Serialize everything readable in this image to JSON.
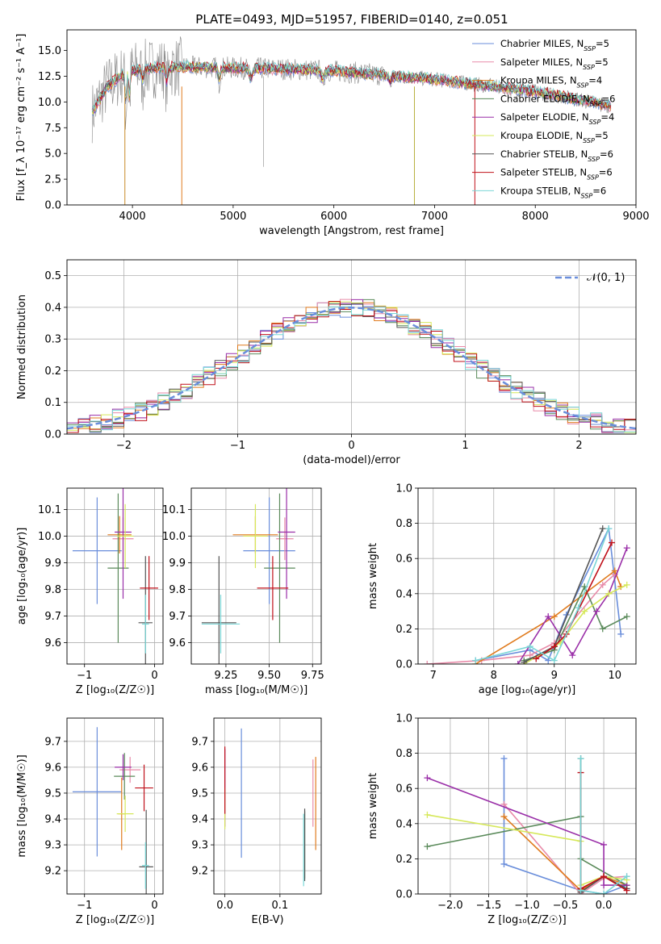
{
  "figure": {
    "title": "PLATE=0493, MJD=51957, FIBERID=0140, z=0.051"
  },
  "colors": {
    "Chabrier MILES": "#6a8edb",
    "Salpeter MILES": "#e88aa8",
    "Kroupa MILES": "#e07b1e",
    "Chabrier ELODIE": "#5a8a5a",
    "Salpeter ELODIE": "#9a2fa8",
    "Kroupa ELODIE": "#d6e85a",
    "Chabrier STELIB": "#555555",
    "Salpeter STELIB": "#c0101a",
    "Kroupa STELIB": "#79d6d6",
    "data": "#888888"
  },
  "chart_data": [
    {
      "id": "spectrum",
      "type": "line",
      "title": "PLATE=0493, MJD=51957, FIBERID=0140, z=0.051",
      "xlabel": "wavelength [Angstrom, rest frame]",
      "ylabel": "Flux [f_λ 10⁻¹⁷ erg cm⁻² s⁻¹ A⁻¹]",
      "xlim": [
        3350,
        9000
      ],
      "ylim": [
        0,
        17
      ],
      "xticks": [
        "4000",
        "5000",
        "6000",
        "7000",
        "8000",
        "9000"
      ],
      "yticks": [
        "0.0",
        "2.5",
        "5.0",
        "7.5",
        "10.0",
        "12.5",
        "15.0"
      ],
      "legend_position": "top-right",
      "legend": [
        {
          "name": "Chabrier MILES",
          "nssp": "5"
        },
        {
          "name": "Salpeter MILES",
          "nssp": "5"
        },
        {
          "name": "Kroupa MILES",
          "nssp": "4"
        },
        {
          "name": "Chabrier ELODIE",
          "nssp": "6"
        },
        {
          "name": "Salpeter ELODIE",
          "nssp": "4"
        },
        {
          "name": "Kroupa ELODIE",
          "nssp": "5"
        },
        {
          "name": "Chabrier STELIB",
          "nssp": "6"
        },
        {
          "name": "Salpeter STELIB",
          "nssp": "6"
        },
        {
          "name": "Kroupa STELIB",
          "nssp": "6"
        }
      ],
      "continuum": {
        "x": [
          3600,
          3750,
          3950,
          4200,
          4500,
          5000,
          5500,
          6000,
          6500,
          7000,
          7500,
          8000,
          8500,
          8750
        ],
        "y": [
          9.0,
          11.5,
          13.0,
          13.3,
          13.4,
          13.3,
          13.2,
          13.0,
          12.6,
          12.2,
          11.6,
          11.0,
          10.1,
          9.6
        ]
      }
    },
    {
      "id": "residuals",
      "type": "line",
      "xlabel": "(data-model)/error",
      "ylabel": "Normed distribution",
      "xlim": [
        -2.5,
        2.5
      ],
      "ylim": [
        0,
        0.55
      ],
      "xticks": [
        "−2",
        "−1",
        "0",
        "1",
        "2"
      ],
      "yticks": [
        "0.0",
        "0.1",
        "0.2",
        "0.3",
        "0.4",
        "0.5"
      ],
      "grid": true,
      "legend_position": "top-right",
      "legend_label": "𝒩(0, 1)"
    },
    {
      "id": "age_vs_Z",
      "type": "scatter",
      "xlabel": "Z [log₁₀(Z/Z☉)]",
      "ylabel": "age  [log₁₀(age/yr)]",
      "xlim": [
        -1.25,
        0.12
      ],
      "ylim": [
        9.52,
        10.18
      ],
      "xticks": [
        "−1",
        "0"
      ],
      "yticks": [
        "9.6",
        "9.7",
        "9.8",
        "9.9",
        "10.0",
        "10.1"
      ],
      "grid": true,
      "points": [
        {
          "model": "Chabrier MILES",
          "x": -0.82,
          "xerr": 0.35,
          "y": 9.945,
          "yerr": 0.2
        },
        {
          "model": "Salpeter MILES",
          "x": -0.45,
          "xerr": 0.15,
          "y": 9.99,
          "yerr": 0.08
        },
        {
          "model": "Kroupa MILES",
          "x": -0.5,
          "xerr": 0.17,
          "y": 10.005,
          "yerr": 0.07
        },
        {
          "model": "Chabrier ELODIE",
          "x": -0.52,
          "xerr": 0.15,
          "y": 9.88,
          "yerr": 0.28
        },
        {
          "model": "Salpeter ELODIE",
          "x": -0.45,
          "xerr": 0.12,
          "y": 10.015,
          "yerr": 0.25
        },
        {
          "model": "Kroupa ELODIE",
          "x": -0.42,
          "xerr": 0.12,
          "y": 10.0,
          "yerr": 0.12
        },
        {
          "model": "Chabrier STELIB",
          "x": -0.13,
          "xerr": 0.1,
          "y": 9.675,
          "yerr": 0.25
        },
        {
          "model": "Salpeter STELIB",
          "x": -0.08,
          "xerr": 0.13,
          "y": 9.805,
          "yerr": 0.12
        },
        {
          "model": "Kroupa STELIB",
          "x": -0.13,
          "xerr": 0.05,
          "y": 9.67,
          "yerr": 0.11
        }
      ]
    },
    {
      "id": "age_vs_mass",
      "type": "scatter",
      "xlabel": "mass [log₁₀(M/M☉)]",
      "ylabel": "",
      "xlim": [
        9.05,
        9.8
      ],
      "ylim": [
        9.52,
        10.18
      ],
      "xticks": [
        "9.25",
        "9.50",
        "9.75"
      ],
      "yticks": [
        "9.6",
        "9.7",
        "9.8",
        "9.9",
        "10.0",
        "10.1"
      ],
      "grid": true,
      "points": [
        {
          "model": "Chabrier MILES",
          "x": 9.5,
          "xerr": 0.15,
          "y": 9.945,
          "yerr": 0.2
        },
        {
          "model": "Salpeter MILES",
          "x": 9.59,
          "xerr": 0.05,
          "y": 9.99,
          "yerr": 0.08
        },
        {
          "model": "Kroupa MILES",
          "x": 9.42,
          "xerr": 0.13,
          "y": 10.005,
          "yerr": 0.07
        },
        {
          "model": "Chabrier ELODIE",
          "x": 9.56,
          "xerr": 0.09,
          "y": 9.88,
          "yerr": 0.28
        },
        {
          "model": "Salpeter ELODIE",
          "x": 9.6,
          "xerr": 0.05,
          "y": 10.015,
          "yerr": 0.25
        },
        {
          "model": "Kroupa ELODIE",
          "x": 9.42,
          "xerr": 0.07,
          "y": 10.0,
          "yerr": 0.12
        },
        {
          "model": "Chabrier STELIB",
          "x": 9.21,
          "xerr": 0.1,
          "y": 9.675,
          "yerr": 0.25
        },
        {
          "model": "Salpeter STELIB",
          "x": 9.52,
          "xerr": 0.09,
          "y": 9.805,
          "yerr": 0.12
        },
        {
          "model": "Kroupa STELIB",
          "x": 9.22,
          "xerr": 0.11,
          "y": 9.67,
          "yerr": 0.11
        }
      ]
    },
    {
      "id": "massweight_vs_age",
      "type": "line",
      "xlabel": "age  [log₁₀(age/yr)]",
      "ylabel": "mass weight",
      "xlim": [
        6.75,
        10.35
      ],
      "ylim": [
        0,
        1.0
      ],
      "xticks": [
        "7",
        "8",
        "9",
        "10"
      ],
      "yticks": [
        "0.0",
        "0.2",
        "0.4",
        "0.6",
        "0.8",
        "1.0"
      ],
      "grid": true,
      "series": [
        {
          "model": "Chabrier MILES",
          "x": [
            7.7,
            8.6,
            8.9,
            9.2,
            9.9,
            10.1
          ],
          "y": [
            0.02,
            0.08,
            0.02,
            0.28,
            0.77,
            0.17
          ]
        },
        {
          "model": "Salpeter MILES",
          "x": [
            6.9,
            7.8,
            8.6,
            9.0,
            9.8,
            10.0
          ],
          "y": [
            0.0,
            0.02,
            0.05,
            0.12,
            0.45,
            0.51
          ]
        },
        {
          "model": "Kroupa MILES",
          "x": [
            7.7,
            9.0,
            10.0,
            10.1
          ],
          "y": [
            0.0,
            0.27,
            0.53,
            0.44
          ]
        },
        {
          "model": "Chabrier ELODIE",
          "x": [
            8.5,
            9.0,
            9.5,
            9.8,
            10.2
          ],
          "y": [
            0.02,
            0.08,
            0.44,
            0.2,
            0.27
          ]
        },
        {
          "model": "Salpeter ELODIE",
          "x": [
            8.4,
            8.9,
            9.3,
            9.7,
            9.9,
            10.2
          ],
          "y": [
            0.0,
            0.27,
            0.05,
            0.3,
            0.4,
            0.66
          ]
        },
        {
          "model": "Kroupa ELODIE",
          "x": [
            8.5,
            9.1,
            9.5,
            9.9,
            10.2
          ],
          "y": [
            0.0,
            0.12,
            0.3,
            0.4,
            0.45
          ]
        },
        {
          "model": "Chabrier STELIB",
          "x": [
            8.5,
            9.0,
            9.8
          ],
          "y": [
            0.01,
            0.1,
            0.77
          ]
        },
        {
          "model": "Salpeter STELIB",
          "x": [
            8.7,
            9.0,
            9.2,
            9.95
          ],
          "y": [
            0.03,
            0.1,
            0.17,
            0.69
          ]
        },
        {
          "model": "Kroupa STELIB",
          "x": [
            7.7,
            8.6,
            9.0,
            9.4,
            9.9
          ],
          "y": [
            0.02,
            0.1,
            0.02,
            0.32,
            0.77
          ]
        }
      ]
    },
    {
      "id": "mass_vs_Z",
      "type": "scatter",
      "xlabel": "Z [log₁₀(Z/Z☉)]",
      "ylabel": "mass [log₁₀(M/M☉)]",
      "xlim": [
        -1.25,
        0.12
      ],
      "ylim": [
        9.11,
        9.79
      ],
      "xticks": [
        "−1",
        "0"
      ],
      "yticks": [
        "9.2",
        "9.3",
        "9.4",
        "9.5",
        "9.6",
        "9.7"
      ],
      "grid": true,
      "points": [
        {
          "model": "Chabrier MILES",
          "x": -0.82,
          "xerr": 0.35,
          "y": 9.505,
          "yerr": 0.25
        },
        {
          "model": "Salpeter MILES",
          "x": -0.35,
          "xerr": 0.15,
          "y": 9.59,
          "yerr": 0.05
        },
        {
          "model": "Kroupa MILES",
          "x": -0.47,
          "xerr": 0.05,
          "y": 9.42,
          "yerr": 0.14
        },
        {
          "model": "Chabrier ELODIE",
          "x": -0.43,
          "xerr": 0.15,
          "y": 9.565,
          "yerr": 0.09
        },
        {
          "model": "Salpeter ELODIE",
          "x": -0.45,
          "xerr": 0.12,
          "y": 9.6,
          "yerr": 0.05
        },
        {
          "model": "Kroupa ELODIE",
          "x": -0.42,
          "xerr": 0.12,
          "y": 9.42,
          "yerr": 0.07
        },
        {
          "model": "Chabrier STELIB",
          "x": -0.12,
          "xerr": 0.1,
          "y": 9.215,
          "yerr": 0.22
        },
        {
          "model": "Salpeter STELIB",
          "x": -0.15,
          "xerr": 0.13,
          "y": 9.52,
          "yerr": 0.09
        },
        {
          "model": "Kroupa STELIB",
          "x": -0.13,
          "xerr": 0.05,
          "y": 9.22,
          "yerr": 0.09
        }
      ]
    },
    {
      "id": "mass_vs_ebv",
      "type": "scatter",
      "xlabel": "E(B-V)",
      "ylabel": "",
      "xlim": [
        -0.02,
        0.175
      ],
      "ylim": [
        9.11,
        9.79
      ],
      "xticks": [
        "0.0",
        "0.1"
      ],
      "yticks": [
        "9.2",
        "9.3",
        "9.4",
        "9.5",
        "9.6",
        "9.7"
      ],
      "grid": true,
      "points": [
        {
          "model": "Chabrier MILES",
          "x": 0.03,
          "y": 9.5,
          "yerr": 0.25
        },
        {
          "model": "Salpeter MILES",
          "x": 0.16,
          "y": 9.5,
          "yerr": 0.13
        },
        {
          "model": "Kroupa MILES",
          "x": 0.165,
          "y": 9.46,
          "yerr": 0.18
        },
        {
          "model": "Chabrier ELODIE",
          "x": 0.145,
          "y": 9.3,
          "yerr": 0.13
        },
        {
          "model": "Salpeter ELODIE",
          "x": 0.0,
          "y": 9.52,
          "yerr": 0.15
        },
        {
          "model": "Kroupa ELODIE",
          "x": 0.0,
          "y": 9.44,
          "yerr": 0.08
        },
        {
          "model": "Chabrier STELIB",
          "x": 0.145,
          "y": 9.3,
          "yerr": 0.14
        },
        {
          "model": "Salpeter STELIB",
          "x": 0.0,
          "y": 9.55,
          "yerr": 0.13
        },
        {
          "model": "Kroupa STELIB",
          "x": 0.143,
          "y": 9.28,
          "yerr": 0.14
        }
      ]
    },
    {
      "id": "massweight_vs_Z",
      "type": "line",
      "xlabel": "Z [log₁₀(Z/Z☉)]",
      "ylabel": "mass weight",
      "xlim": [
        -2.42,
        0.42
      ],
      "ylim": [
        0,
        1.0
      ],
      "xticks": [
        "−2.0",
        "−1.5",
        "−1.0",
        "−0.5",
        "0.0"
      ],
      "yticks": [
        "0.0",
        "0.2",
        "0.4",
        "0.6",
        "0.8",
        "1.0"
      ],
      "grid": true,
      "series": [
        {
          "model": "Chabrier MILES",
          "x": [
            -1.3,
            -1.3,
            -0.3,
            0.0,
            0.3
          ],
          "y": [
            0.77,
            0.17,
            0.02,
            0.0,
            0.05
          ]
        },
        {
          "model": "Salpeter MILES",
          "x": [
            -1.3,
            -0.3,
            0.0,
            0.3
          ],
          "y": [
            0.51,
            0.0,
            0.09,
            0.1
          ]
        },
        {
          "model": "Kroupa MILES",
          "x": [
            -1.3,
            -0.3,
            0.0,
            0.3
          ],
          "y": [
            0.44,
            0.02,
            0.1,
            0.05
          ]
        },
        {
          "model": "Chabrier ELODIE",
          "x": [
            -2.3,
            -0.3,
            -0.3,
            0.3
          ],
          "y": [
            0.27,
            0.44,
            0.2,
            0.05
          ]
        },
        {
          "model": "Salpeter ELODIE",
          "x": [
            -2.3,
            0.0,
            0.0,
            0.3
          ],
          "y": [
            0.66,
            0.28,
            0.05,
            0.05
          ]
        },
        {
          "model": "Kroupa ELODIE",
          "x": [
            -2.3,
            -0.3,
            -0.3,
            0.0,
            0.3
          ],
          "y": [
            0.45,
            0.3,
            0.05,
            0.1,
            0.08
          ]
        },
        {
          "model": "Chabrier STELIB",
          "x": [
            -0.3,
            -0.3,
            0.0,
            0.3
          ],
          "y": [
            0.77,
            0.01,
            0.1,
            0.03
          ]
        },
        {
          "model": "Salpeter STELIB",
          "x": [
            -0.3,
            -0.3,
            0.0,
            0.3
          ],
          "y": [
            0.69,
            0.03,
            0.1,
            0.02
          ]
        },
        {
          "model": "Kroupa STELIB",
          "x": [
            -0.3,
            -0.3,
            0.0,
            0.3
          ],
          "y": [
            0.77,
            0.02,
            0.0,
            0.1
          ]
        }
      ]
    }
  ]
}
